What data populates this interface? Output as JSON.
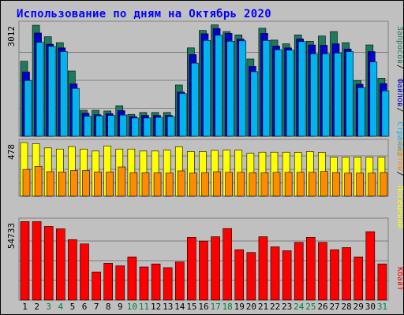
{
  "title": "Использование по дням на Октябрь 2020",
  "colors": {
    "background": "#c0c0c0",
    "title": "#0000ff",
    "hits": "#1e7a5c",
    "files": "#0000cc",
    "pages": "#00b4f0",
    "visits": "#ffff00",
    "sites": "#ff8c00",
    "kbytes": "#ff0000",
    "day_weekday": "#000000",
    "day_weekend": "#008040"
  },
  "chart_data": [
    {
      "type": "bar",
      "name": "hits-files-pages",
      "ymax_label": "3012",
      "ylim": [
        0,
        3012
      ],
      "grid": true,
      "legend_placement": "right-vertical",
      "legend": [
        {
          "key": "hits",
          "label": "Запросов"
        },
        {
          "key": "files",
          "label": "Файлов"
        },
        {
          "key": "pages",
          "label": "Страниц"
        }
      ],
      "series": [
        {
          "key": "hits",
          "values": [
            2020,
            2990,
            2680,
            2520,
            1760,
            700,
            700,
            680,
            820,
            590,
            640,
            640,
            640,
            1380,
            2380,
            2850,
            3000,
            2820,
            2730,
            2080,
            2910,
            2590,
            2490,
            2730,
            2560,
            2700,
            2820,
            2520,
            1500,
            2460,
            1560
          ]
        },
        {
          "key": "files",
          "values": [
            1730,
            2780,
            2480,
            2380,
            1410,
            620,
            580,
            610,
            690,
            530,
            560,
            560,
            560,
            1190,
            2200,
            2760,
            2900,
            2770,
            2620,
            1880,
            2770,
            2430,
            2380,
            2620,
            2460,
            2450,
            2490,
            2350,
            1400,
            2280,
            1420
          ]
        },
        {
          "key": "pages",
          "values": [
            1500,
            2530,
            2420,
            2280,
            1290,
            540,
            550,
            560,
            570,
            490,
            490,
            510,
            530,
            1150,
            1970,
            2580,
            2720,
            2560,
            2570,
            1740,
            2580,
            2330,
            2320,
            2550,
            2220,
            2220,
            2240,
            2280,
            1310,
            2000,
            1220
          ]
        }
      ]
    },
    {
      "type": "bar",
      "name": "visits-sites",
      "ymax_label": "478",
      "ylim": [
        0,
        478
      ],
      "grid": true,
      "legend_placement": "right-vertical",
      "legend": [
        {
          "key": "sites",
          "label": "Сайтов"
        },
        {
          "key": "visits",
          "label": "Посещений"
        }
      ],
      "series": [
        {
          "key": "visits",
          "values": [
            478,
            468,
            430,
            420,
            442,
            420,
            402,
            448,
            420,
            420,
            402,
            402,
            410,
            440,
            398,
            398,
            408,
            410,
            410,
            382,
            392,
            392,
            392,
            390,
            398,
            390,
            348,
            348,
            348,
            348,
            348
          ]
        },
        {
          "key": "sites",
          "values": [
            238,
            265,
            218,
            215,
            228,
            228,
            215,
            215,
            260,
            208,
            208,
            208,
            205,
            225,
            205,
            210,
            218,
            212,
            212,
            208,
            208,
            212,
            212,
            212,
            212,
            220,
            210,
            205,
            205,
            205,
            210
          ]
        }
      ]
    },
    {
      "type": "bar",
      "name": "kbytes",
      "ymax_label": "54733",
      "ylim": [
        0,
        54733
      ],
      "grid": true,
      "legend_placement": "right-vertical",
      "legend": [
        {
          "key": "kbytes",
          "label": "Кбайт"
        }
      ],
      "series": [
        {
          "key": "kbytes",
          "values": [
            54500,
            54500,
            51200,
            49500,
            42000,
            39000,
            19500,
            25500,
            23800,
            30000,
            23000,
            25100,
            22500,
            26500,
            43600,
            41000,
            44000,
            49700,
            35000,
            33000,
            44000,
            37000,
            34300,
            40100,
            43600,
            40100,
            35000,
            36500,
            30000,
            47500,
            25100
          ]
        }
      ]
    }
  ],
  "days": [
    {
      "label": "1",
      "weekend": false
    },
    {
      "label": "2",
      "weekend": false
    },
    {
      "label": "3",
      "weekend": true
    },
    {
      "label": "4",
      "weekend": true
    },
    {
      "label": "5",
      "weekend": false
    },
    {
      "label": "6",
      "weekend": false
    },
    {
      "label": "7",
      "weekend": false
    },
    {
      "label": "8",
      "weekend": false
    },
    {
      "label": "9",
      "weekend": false
    },
    {
      "label": "10",
      "weekend": true
    },
    {
      "label": "11",
      "weekend": true
    },
    {
      "label": "12",
      "weekend": false
    },
    {
      "label": "13",
      "weekend": false
    },
    {
      "label": "14",
      "weekend": false
    },
    {
      "label": "15",
      "weekend": false
    },
    {
      "label": "16",
      "weekend": false
    },
    {
      "label": "17",
      "weekend": true
    },
    {
      "label": "18",
      "weekend": true
    },
    {
      "label": "19",
      "weekend": false
    },
    {
      "label": "20",
      "weekend": false
    },
    {
      "label": "21",
      "weekend": false
    },
    {
      "label": "22",
      "weekend": false
    },
    {
      "label": "23",
      "weekend": false
    },
    {
      "label": "24",
      "weekend": true
    },
    {
      "label": "25",
      "weekend": true
    },
    {
      "label": "26",
      "weekend": false
    },
    {
      "label": "27",
      "weekend": false
    },
    {
      "label": "28",
      "weekend": false
    },
    {
      "label": "29",
      "weekend": false
    },
    {
      "label": "30",
      "weekend": false
    },
    {
      "label": "31",
      "weekend": true
    }
  ]
}
